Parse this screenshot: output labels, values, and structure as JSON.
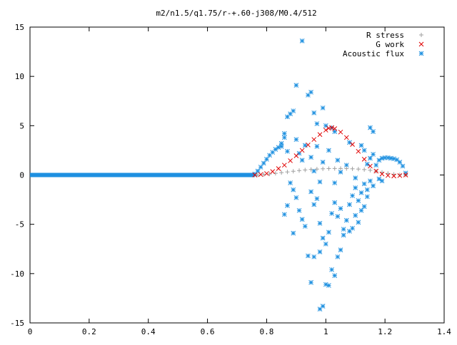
{
  "chart_data": {
    "type": "scatter",
    "title": "m2/n1.5/q1.75/r-+.60-j308/M0.4/512",
    "xlabel": "",
    "ylabel": "",
    "xlim": [
      0,
      1.4
    ],
    "ylim": [
      -15,
      15
    ],
    "xticks": [
      "0",
      "0.2",
      "0.4",
      "0.6",
      "0.8",
      "1",
      "1.2",
      "1.4"
    ],
    "yticks": [
      "15",
      "10",
      "5",
      "0",
      "-5",
      "-10",
      "-15"
    ],
    "xtick_values": [
      0,
      0.2,
      0.4,
      0.6,
      0.8,
      1.0,
      1.2,
      1.4
    ],
    "ytick_values": [
      15,
      10,
      5,
      0,
      -5,
      -10,
      -15
    ],
    "grid": false,
    "legend_position": "top-right",
    "series": [
      {
        "name": "R stress",
        "color": "#a0a0a0",
        "marker": "plus",
        "points": [
          [
            0.77,
            0.0
          ],
          [
            0.79,
            0.05
          ],
          [
            0.81,
            0.1
          ],
          [
            0.83,
            0.17
          ],
          [
            0.85,
            0.24
          ],
          [
            0.87,
            0.31
          ],
          [
            0.89,
            0.38
          ],
          [
            0.91,
            0.45
          ],
          [
            0.93,
            0.51
          ],
          [
            0.95,
            0.56
          ],
          [
            0.97,
            0.6
          ],
          [
            0.99,
            0.63
          ],
          [
            1.01,
            0.65
          ],
          [
            1.03,
            0.66
          ],
          [
            1.05,
            0.66
          ],
          [
            1.07,
            0.65
          ],
          [
            1.09,
            0.63
          ],
          [
            1.11,
            0.6
          ],
          [
            1.13,
            0.55
          ],
          [
            1.15,
            0.48
          ],
          [
            1.17,
            0.38
          ],
          [
            1.19,
            0.27
          ],
          [
            1.21,
            0.16
          ],
          [
            1.23,
            0.07
          ],
          [
            1.25,
            0.02
          ],
          [
            1.27,
            0.0
          ]
        ]
      },
      {
        "name": "G work",
        "color": "#e00000",
        "marker": "cross",
        "points": [
          [
            0.76,
            0.0
          ],
          [
            0.78,
            0.05
          ],
          [
            0.8,
            0.15
          ],
          [
            0.82,
            0.35
          ],
          [
            0.84,
            0.65
          ],
          [
            0.86,
            1.0
          ],
          [
            0.88,
            1.45
          ],
          [
            0.9,
            1.95
          ],
          [
            0.92,
            2.5
          ],
          [
            0.94,
            3.05
          ],
          [
            0.96,
            3.6
          ],
          [
            0.98,
            4.1
          ],
          [
            1.0,
            4.55
          ],
          [
            1.01,
            4.75
          ],
          [
            1.02,
            4.8
          ],
          [
            1.03,
            4.7
          ],
          [
            1.05,
            4.35
          ],
          [
            1.07,
            3.8
          ],
          [
            1.09,
            3.1
          ],
          [
            1.11,
            2.4
          ],
          [
            1.13,
            1.6
          ],
          [
            1.15,
            0.9
          ],
          [
            1.17,
            0.4
          ],
          [
            1.19,
            0.1
          ],
          [
            1.21,
            -0.05
          ],
          [
            1.23,
            -0.1
          ],
          [
            1.25,
            -0.06
          ],
          [
            1.27,
            0.0
          ]
        ]
      },
      {
        "name": "Acoustic flux",
        "color": "#1e90e0",
        "marker": "star",
        "baseline": {
          "x_start": 0.0,
          "x_end": 0.76,
          "y": 0.0
        },
        "points": [
          [
            0.76,
            0.1
          ],
          [
            0.77,
            0.4
          ],
          [
            0.78,
            0.8
          ],
          [
            0.79,
            1.2
          ],
          [
            0.8,
            1.6
          ],
          [
            0.81,
            2.0
          ],
          [
            0.82,
            2.3
          ],
          [
            0.83,
            2.6
          ],
          [
            0.84,
            2.8
          ],
          [
            0.85,
            2.9
          ],
          [
            0.86,
            4.2
          ],
          [
            0.87,
            5.9
          ],
          [
            0.88,
            6.2
          ],
          [
            0.89,
            6.5
          ],
          [
            0.9,
            9.1
          ],
          [
            0.92,
            13.6
          ],
          [
            0.94,
            8.1
          ],
          [
            0.95,
            8.4
          ],
          [
            0.96,
            6.3
          ],
          [
            0.97,
            5.2
          ],
          [
            0.99,
            6.8
          ],
          [
            1.0,
            5.0
          ],
          [
            1.02,
            4.8
          ],
          [
            1.03,
            4.4
          ],
          [
            1.08,
            3.3
          ],
          [
            1.12,
            3.0
          ],
          [
            1.15,
            4.8
          ],
          [
            1.16,
            4.4
          ],
          [
            0.85,
            3.2
          ],
          [
            0.86,
            3.8
          ],
          [
            0.87,
            2.4
          ],
          [
            0.9,
            3.6
          ],
          [
            0.91,
            2.2
          ],
          [
            0.93,
            3.0
          ],
          [
            0.95,
            1.8
          ],
          [
            0.97,
            2.9
          ],
          [
            0.99,
            1.3
          ],
          [
            1.01,
            2.5
          ],
          [
            1.04,
            1.5
          ],
          [
            1.07,
            1.0
          ],
          [
            0.88,
            -0.8
          ],
          [
            0.89,
            -1.5
          ],
          [
            0.9,
            -2.3
          ],
          [
            0.91,
            -3.6
          ],
          [
            0.92,
            -4.5
          ],
          [
            0.93,
            -5.2
          ],
          [
            0.95,
            -1.7
          ],
          [
            0.96,
            -3.0
          ],
          [
            0.97,
            -2.4
          ],
          [
            0.98,
            -4.9
          ],
          [
            0.99,
            -6.4
          ],
          [
            1.0,
            -7.0
          ],
          [
            1.01,
            -5.8
          ],
          [
            1.02,
            -3.9
          ],
          [
            1.03,
            -2.8
          ],
          [
            1.04,
            -4.2
          ],
          [
            1.05,
            -3.4
          ],
          [
            1.06,
            -5.5
          ],
          [
            1.07,
            -4.6
          ],
          [
            1.08,
            -3.0
          ],
          [
            1.09,
            -2.1
          ],
          [
            1.1,
            -1.3
          ],
          [
            1.11,
            -2.6
          ],
          [
            1.12,
            -1.8
          ],
          [
            1.13,
            -0.9
          ],
          [
            1.14,
            -1.5
          ],
          [
            1.15,
            -0.6
          ],
          [
            0.87,
            -3.1
          ],
          [
            0.86,
            -4.0
          ],
          [
            0.89,
            -5.9
          ],
          [
            0.94,
            -8.2
          ],
          [
            0.95,
            -10.9
          ],
          [
            0.96,
            -8.3
          ],
          [
            0.98,
            -13.6
          ],
          [
            0.99,
            -13.3
          ],
          [
            1.0,
            -11.1
          ],
          [
            1.01,
            -11.2
          ],
          [
            1.02,
            -9.6
          ],
          [
            1.03,
            -10.2
          ],
          [
            1.04,
            -8.3
          ],
          [
            1.05,
            -7.6
          ],
          [
            0.98,
            -7.8
          ],
          [
            1.06,
            -6.1
          ],
          [
            1.08,
            -5.7
          ],
          [
            1.09,
            -5.4
          ],
          [
            1.1,
            -4.1
          ],
          [
            1.11,
            -4.8
          ],
          [
            1.12,
            -3.6
          ],
          [
            1.13,
            -3.2
          ],
          [
            1.14,
            -2.2
          ],
          [
            1.16,
            -1.1
          ],
          [
            1.17,
            1.0
          ],
          [
            1.18,
            1.5
          ],
          [
            1.19,
            1.7
          ],
          [
            1.2,
            1.75
          ],
          [
            1.21,
            1.75
          ],
          [
            1.22,
            1.7
          ],
          [
            1.23,
            1.65
          ],
          [
            1.24,
            1.55
          ],
          [
            1.25,
            1.3
          ],
          [
            1.26,
            0.9
          ],
          [
            1.27,
            0.2
          ],
          [
            1.18,
            -0.4
          ],
          [
            1.19,
            -0.6
          ],
          [
            1.15,
            1.7
          ],
          [
            1.14,
            1.1
          ],
          [
            1.16,
            2.1
          ],
          [
            1.13,
            2.5
          ],
          [
            1.03,
            -0.8
          ],
          [
            1.05,
            0.3
          ],
          [
            1.1,
            -0.3
          ],
          [
            0.92,
            1.5
          ],
          [
            0.96,
            0.4
          ],
          [
            0.98,
            -0.7
          ]
        ]
      }
    ]
  }
}
